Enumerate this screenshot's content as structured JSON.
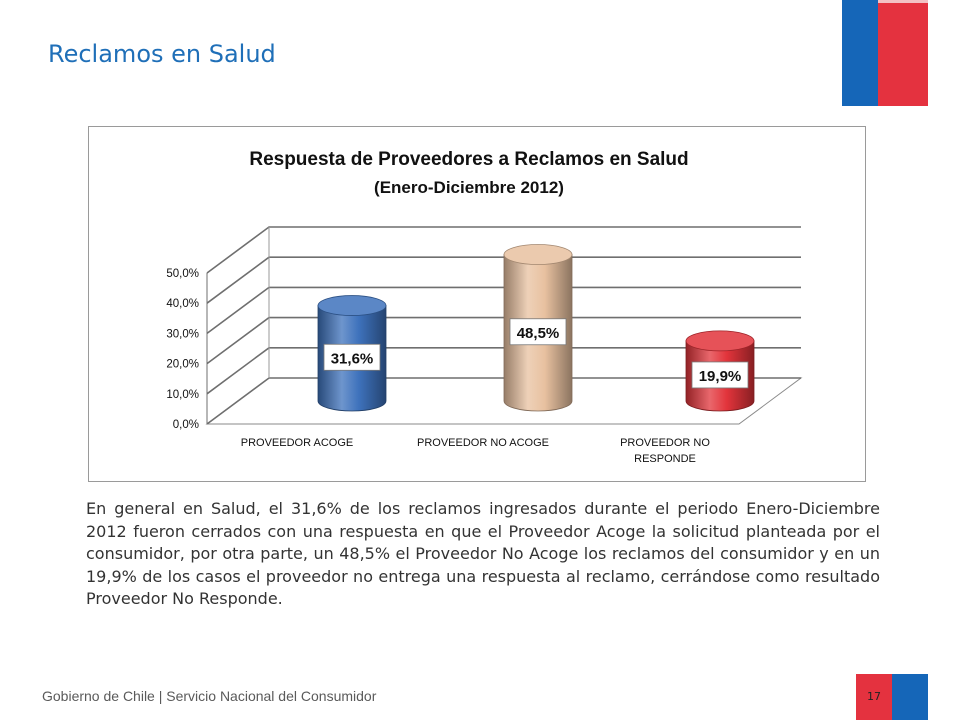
{
  "page": {
    "title": "Reclamos en Salud",
    "body_text": "En general en Salud, el 31,6% de los reclamos ingresados durante el periodo Enero-Diciembre 2012 fueron cerrados con una respuesta en que el Proveedor Acoge la solicitud planteada por el consumidor, por otra parte, un 48,5% el Proveedor No Acoge los reclamos del consumidor y en un 19,9% de los casos el proveedor no entrega una respuesta al reclamo, cerrándose como resultado Proveedor No Responde.",
    "footer_text": "Gobierno de Chile | Servicio Nacional del Consumidor",
    "page_number": "17"
  },
  "colors": {
    "title_blue": "#1f6fb8",
    "flag_blue": "#1566b8",
    "flag_red": "#e4323f",
    "bar_blue": "#3e72bc",
    "bar_peach": "#e8c1a0",
    "bar_red": "#e2343b"
  },
  "chart_data": {
    "type": "bar",
    "title": "Respuesta de Proveedores a Reclamos en Salud",
    "subtitle": "(Enero-Diciembre 2012)",
    "categories": [
      "PROVEEDOR ACOGE",
      "PROVEEDOR NO ACOGE",
      "PROVEEDOR NO RESPONDE"
    ],
    "category_lines": [
      [
        "PROVEEDOR ACOGE"
      ],
      [
        "PROVEEDOR NO ACOGE"
      ],
      [
        "PROVEEDOR NO",
        "RESPONDE"
      ]
    ],
    "values": [
      31.6,
      48.5,
      19.9
    ],
    "data_labels": [
      "31,6%",
      "48,5%",
      "19,9%"
    ],
    "bar_colors": [
      "#3e72bc",
      "#e8c1a0",
      "#e2343b"
    ],
    "ylim": [
      0,
      50
    ],
    "yticks": [
      0,
      10,
      20,
      30,
      40,
      50
    ],
    "ytick_labels": [
      "0,0%",
      "10,0%",
      "20,0%",
      "30,0%",
      "40,0%",
      "50,0%"
    ],
    "grid": true,
    "style": "3d-cylinder"
  }
}
